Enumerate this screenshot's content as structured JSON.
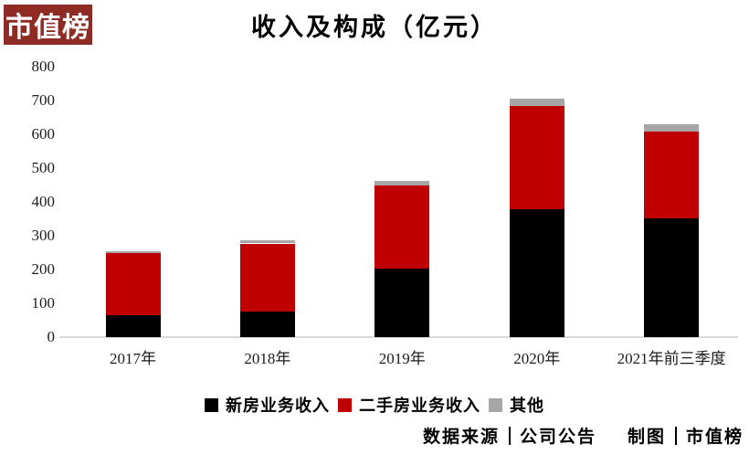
{
  "logo": {
    "text": "市值榜",
    "bg_color": "#8E2B25"
  },
  "chart_data": {
    "type": "bar",
    "stacked": true,
    "title": "收入及构成（亿元）",
    "categories": [
      "2017年",
      "2018年",
      "2019年",
      "2020年",
      "2021年前三季度"
    ],
    "series": [
      {
        "name": "新房业务收入",
        "color": "#000000",
        "values": [
          64,
          75,
          203,
          379,
          352
        ]
      },
      {
        "name": "二手房业务收入",
        "color": "#C00000",
        "values": [
          184,
          202,
          246,
          306,
          257
        ]
      },
      {
        "name": "其他",
        "color": "#A6A6A6",
        "values": [
          6,
          10,
          12,
          20,
          21
        ]
      }
    ],
    "totals": [
      254,
      287,
      461,
      705,
      630
    ],
    "xlabel": "",
    "ylabel": "",
    "ylim": [
      0,
      800
    ],
    "y_ticks": [
      0,
      100,
      200,
      300,
      400,
      500,
      600,
      700,
      800
    ],
    "grid": false,
    "legend_position": "bottom",
    "axis_line_color": "#D9D9D9"
  },
  "footer": {
    "source_label": "数据来源",
    "source_value": "公司公告",
    "credit_label": "制图",
    "credit_value": "市值榜"
  }
}
